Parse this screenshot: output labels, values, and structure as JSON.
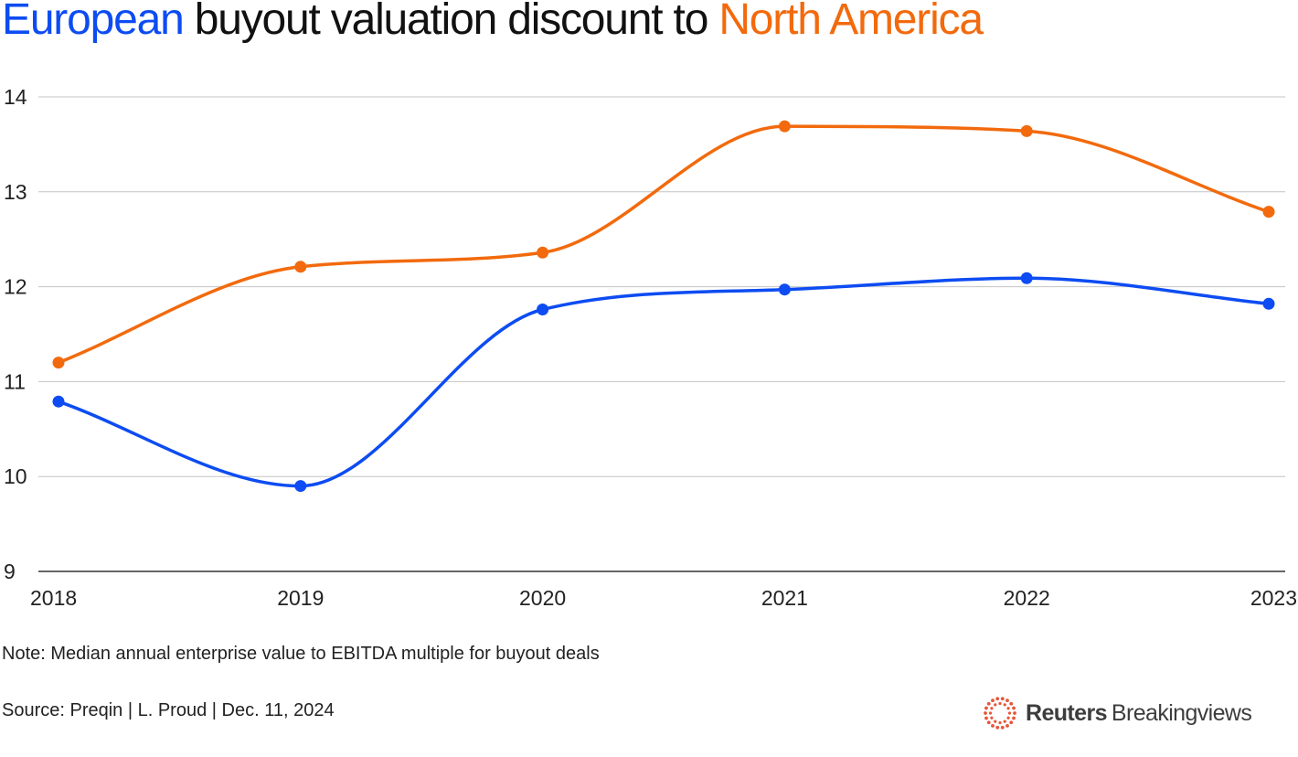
{
  "title": {
    "part1": "European",
    "part2": " buyout valuation discount to ",
    "part3": "North America"
  },
  "colors": {
    "europe": "#0d4cf2",
    "north_america": "#f26a0d",
    "grid": "#c4c4c4",
    "logo_dots": "#e8563a"
  },
  "chart_data": {
    "type": "line",
    "title": "European buyout valuation discount to North America",
    "xlabel": "",
    "ylabel": "",
    "categories": [
      "2018",
      "2019",
      "2020",
      "2021",
      "2022",
      "2023"
    ],
    "yticks": [
      "14",
      "13",
      "12",
      "11",
      "10",
      "9"
    ],
    "ylim": [
      9,
      14
    ],
    "grid": true,
    "series": [
      {
        "name": "European",
        "color": "#0d4cf2",
        "values": [
          10.79,
          9.9,
          11.76,
          11.97,
          12.09,
          11.82
        ]
      },
      {
        "name": "North America",
        "color": "#f26a0d",
        "values": [
          11.2,
          12.21,
          12.36,
          13.69,
          13.64,
          12.79
        ]
      }
    ]
  },
  "footer": {
    "note": "Note: Median annual enterprise value to EBITDA multiple for buyout deals",
    "source": "Source: Preqin | L. Proud | Dec. 11, 2024",
    "logo_bold": "Reuters",
    "logo_light": "Breakingviews",
    "logo_icon": "reuters-dot-ring-icon"
  }
}
